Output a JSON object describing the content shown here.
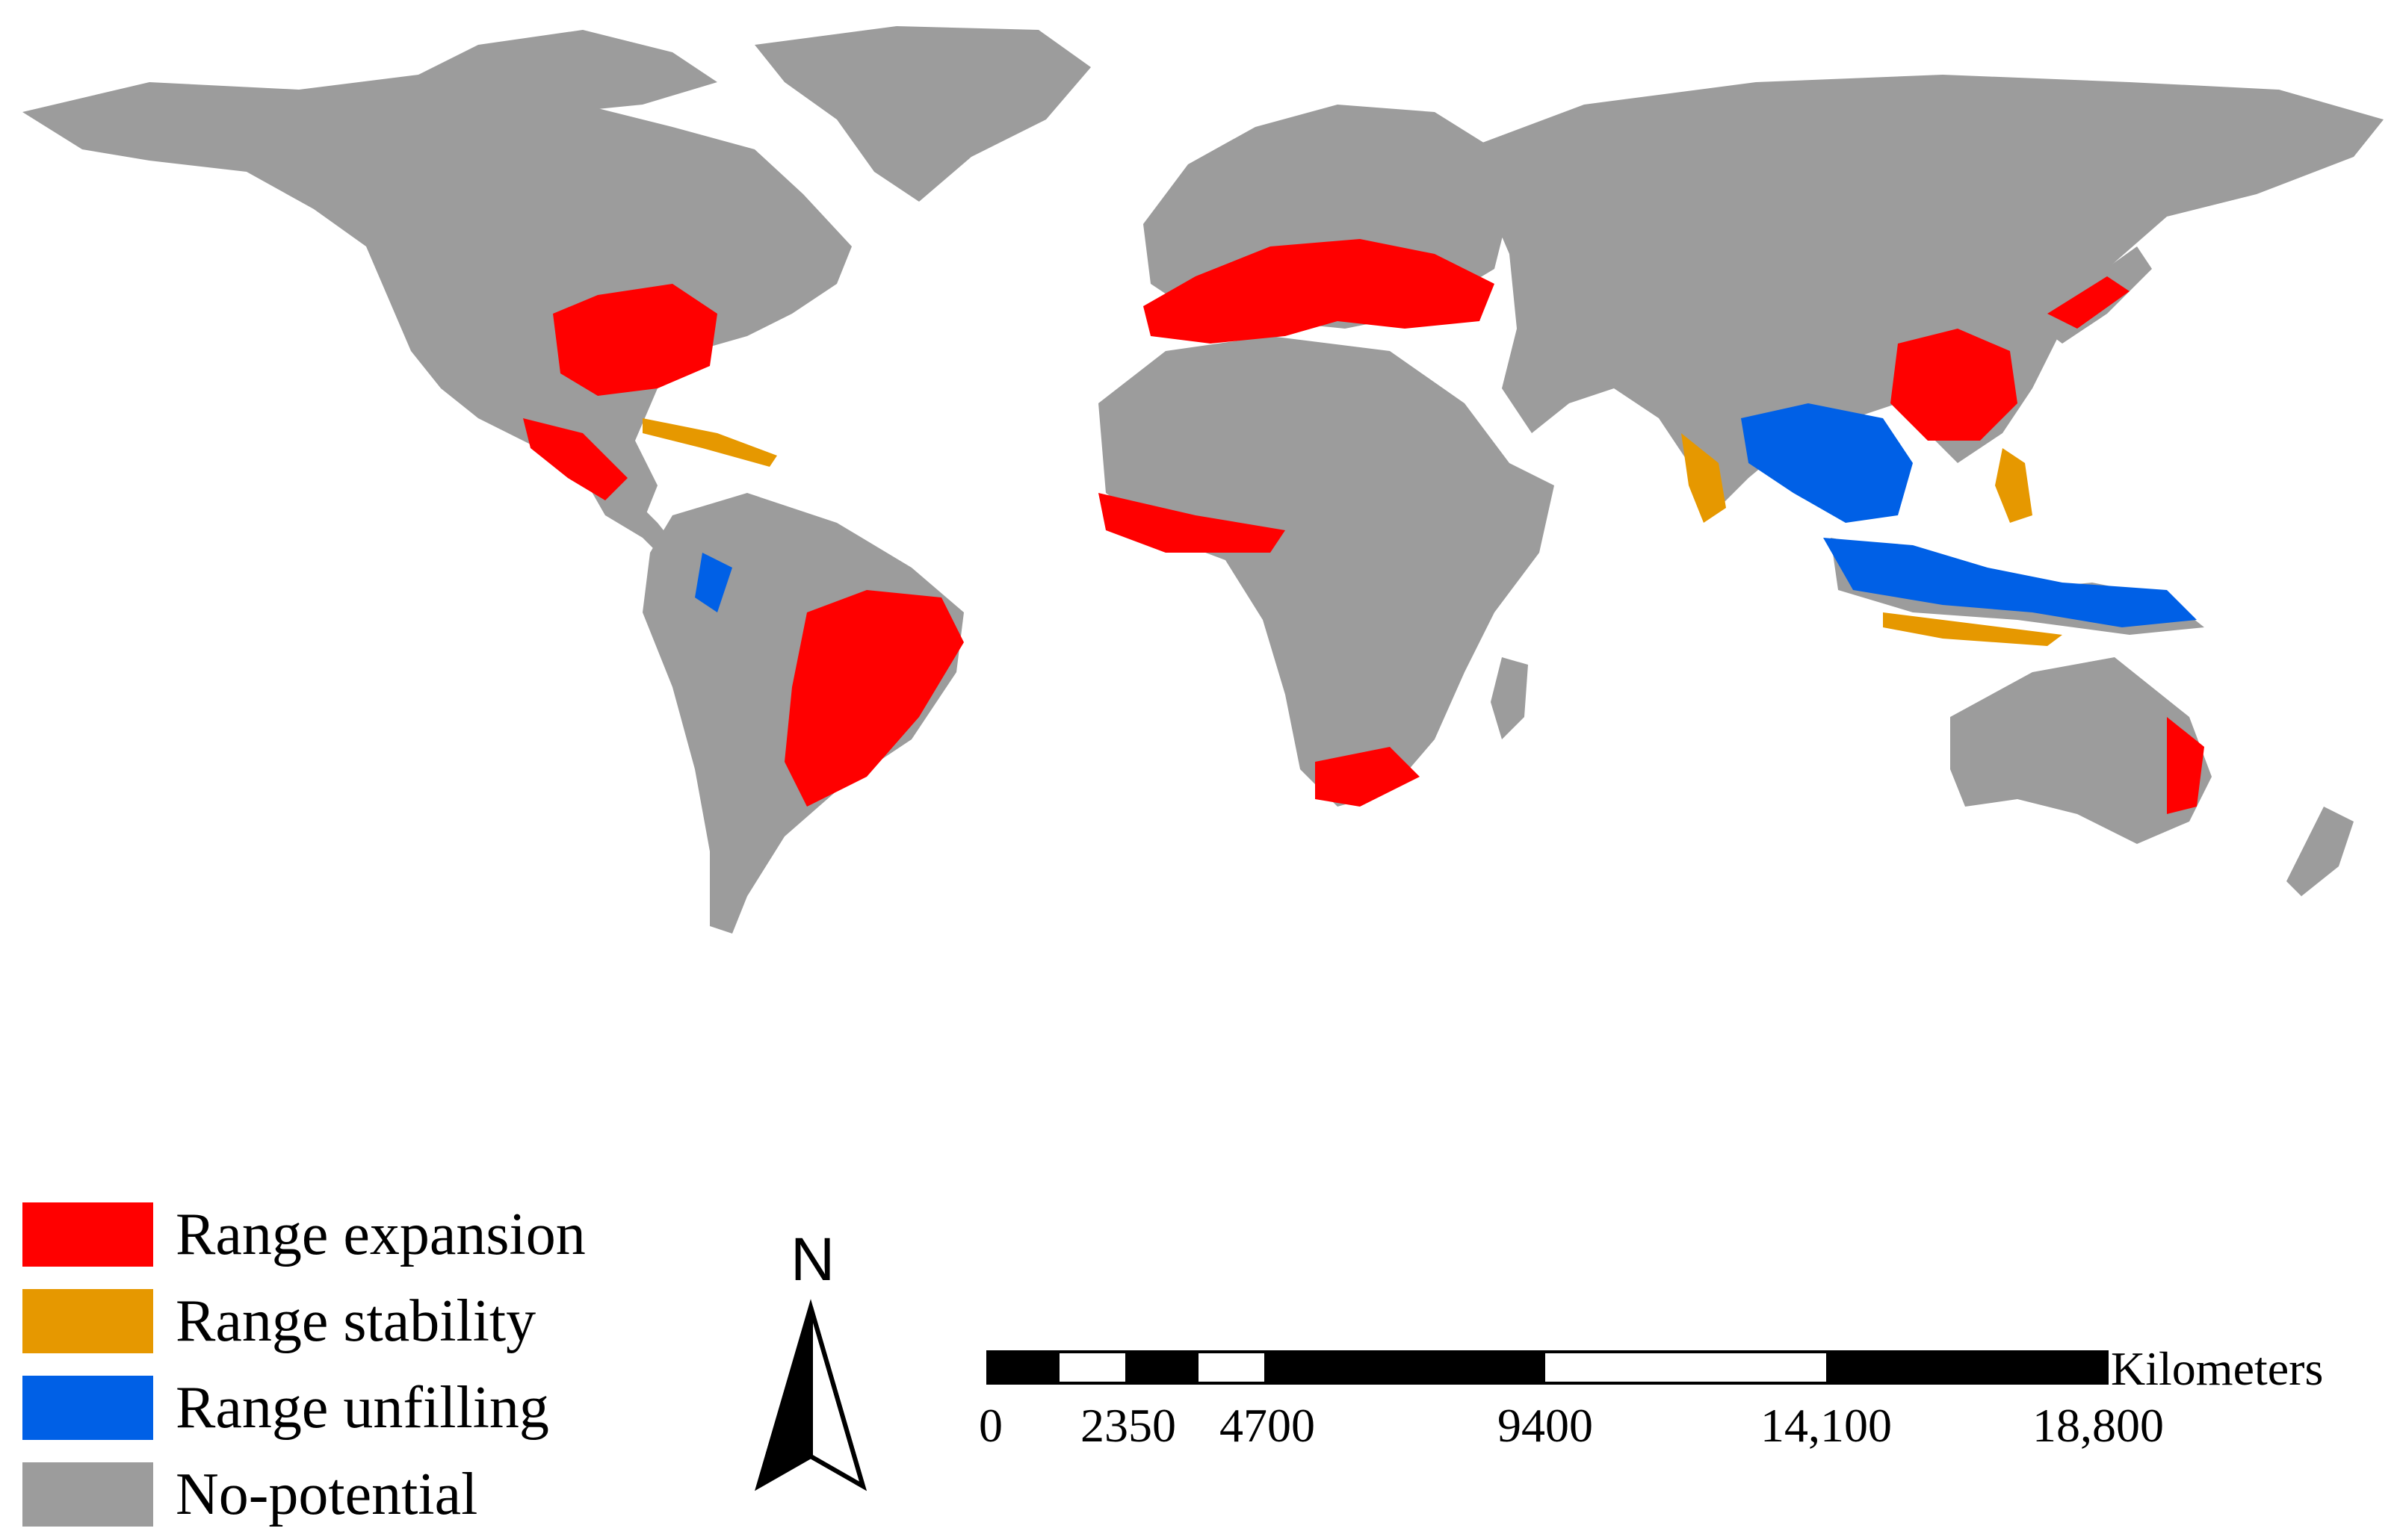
{
  "colors": {
    "expansion": "#ff0000",
    "stability": "#e69800",
    "unfilling": "#0060e6",
    "no_potential": "#9c9c9c"
  },
  "legend": [
    {
      "label": "Range expansion",
      "color": "#ff0000"
    },
    {
      "label": "Range stability",
      "color": "#e69800"
    },
    {
      "label": "Range unfilling",
      "color": "#0060e6"
    },
    {
      "label": "No-potential",
      "color": "#9c9c9c"
    }
  ],
  "north_arrow": {
    "letter": "N"
  },
  "scale_bar": {
    "units": "Kilometers",
    "ticks": [
      "0",
      "2350",
      "4700",
      "9400",
      "14,100",
      "18,800"
    ]
  }
}
